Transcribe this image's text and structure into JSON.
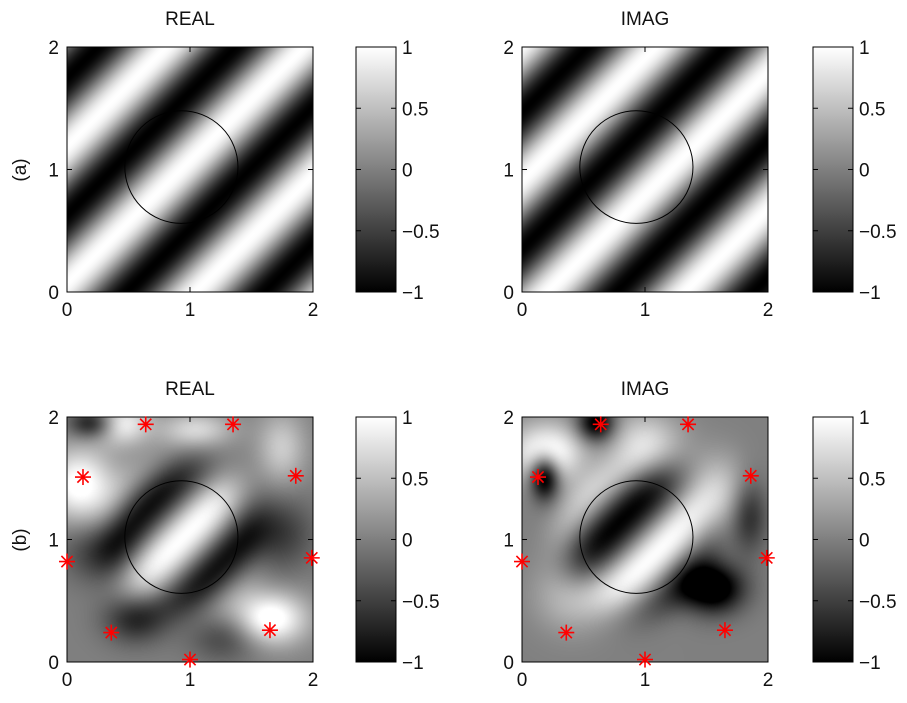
{
  "row_labels": [
    "(a)",
    "(b)"
  ],
  "colorbar": {
    "ticks": [
      -1,
      -0.5,
      0,
      0.5,
      1
    ],
    "tick_labels": [
      "−1",
      "−0.5",
      "0",
      "0.5",
      "1"
    ],
    "range": [
      -1,
      1
    ],
    "colormap": "gray"
  },
  "chart_data": [
    {
      "type": "heatmap",
      "row_label": "(a)",
      "title": "REAL",
      "xlim": [
        0,
        2
      ],
      "ylim": [
        0,
        2
      ],
      "xticks": [
        "0",
        "1",
        "2"
      ],
      "yticks": [
        "0",
        "1",
        "2"
      ],
      "colormap": "gray",
      "clim": [
        -1,
        1
      ],
      "field": "plane wave, diagonal stripes",
      "circle": {
        "center": [
          0.93,
          1.02
        ],
        "radius": 0.46
      },
      "markers": []
    },
    {
      "type": "heatmap",
      "row_label": "(a)",
      "title": "IMAG",
      "xlim": [
        0,
        2
      ],
      "ylim": [
        0,
        2
      ],
      "xticks": [
        "0",
        "1",
        "2"
      ],
      "yticks": [
        "0",
        "1",
        "2"
      ],
      "colormap": "gray",
      "clim": [
        -1,
        1
      ],
      "field": "plane wave, diagonal stripes (quadrature)",
      "circle": {
        "center": [
          0.93,
          1.02
        ],
        "radius": 0.46
      },
      "markers": []
    },
    {
      "type": "heatmap",
      "row_label": "(b)",
      "title": "REAL",
      "xlim": [
        0,
        2
      ],
      "ylim": [
        0,
        2
      ],
      "xticks": [
        "0",
        "1",
        "2"
      ],
      "yticks": [
        "0",
        "1",
        "2"
      ],
      "colormap": "gray",
      "clim": [
        -1,
        1
      ],
      "field": "reconstructed field from point sources",
      "circle": {
        "center": [
          0.93,
          1.02
        ],
        "radius": 0.46
      },
      "marker_color": "#ff0000",
      "markers": [
        [
          0.64,
          1.94
        ],
        [
          1.35,
          1.94
        ],
        [
          0.13,
          1.51
        ],
        [
          1.86,
          1.52
        ],
        [
          0.0,
          0.82
        ],
        [
          1.99,
          0.85
        ],
        [
          0.36,
          0.24
        ],
        [
          1.65,
          0.26
        ],
        [
          1.0,
          0.02
        ]
      ]
    },
    {
      "type": "heatmap",
      "row_label": "(b)",
      "title": "IMAG",
      "xlim": [
        0,
        2
      ],
      "ylim": [
        0,
        2
      ],
      "xticks": [
        "0",
        "1",
        "2"
      ],
      "yticks": [
        "0",
        "1",
        "2"
      ],
      "colormap": "gray",
      "clim": [
        -1,
        1
      ],
      "field": "reconstructed field from point sources (quadrature)",
      "circle": {
        "center": [
          0.93,
          1.02
        ],
        "radius": 0.46
      },
      "marker_color": "#ff0000",
      "markers": [
        [
          0.64,
          1.94
        ],
        [
          1.35,
          1.94
        ],
        [
          0.13,
          1.51
        ],
        [
          1.86,
          1.52
        ],
        [
          0.0,
          0.82
        ],
        [
          1.99,
          0.85
        ],
        [
          0.36,
          0.24
        ],
        [
          1.65,
          0.26
        ],
        [
          1.0,
          0.02
        ]
      ]
    }
  ]
}
